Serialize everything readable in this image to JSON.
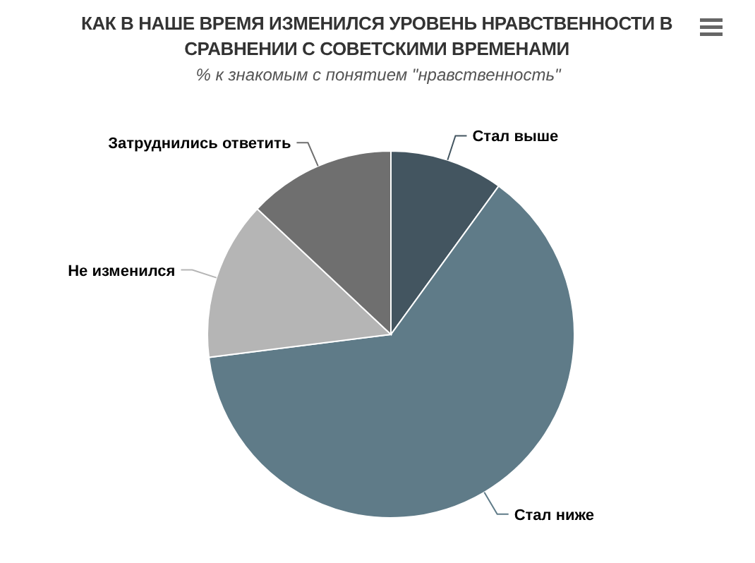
{
  "chart_data": {
    "type": "pie",
    "title": "КАК В НАШЕ ВРЕМЯ ИЗМЕНИЛСЯ УРОВЕНЬ НРАВСТВЕННОСТИ В СРАВНЕНИИ С СОВЕТСКИМИ ВРЕМЕНАМИ",
    "subtitle": "% к знакомым с понятием \"нравственность\"",
    "categories": [
      "Стал выше",
      "Стал ниже",
      "Не изменился",
      "Затруднились ответить"
    ],
    "values": [
      10,
      63,
      14,
      13
    ],
    "colors": [
      "#435560",
      "#5f7b88",
      "#b5b5b5",
      "#6f6f6f"
    ]
  }
}
